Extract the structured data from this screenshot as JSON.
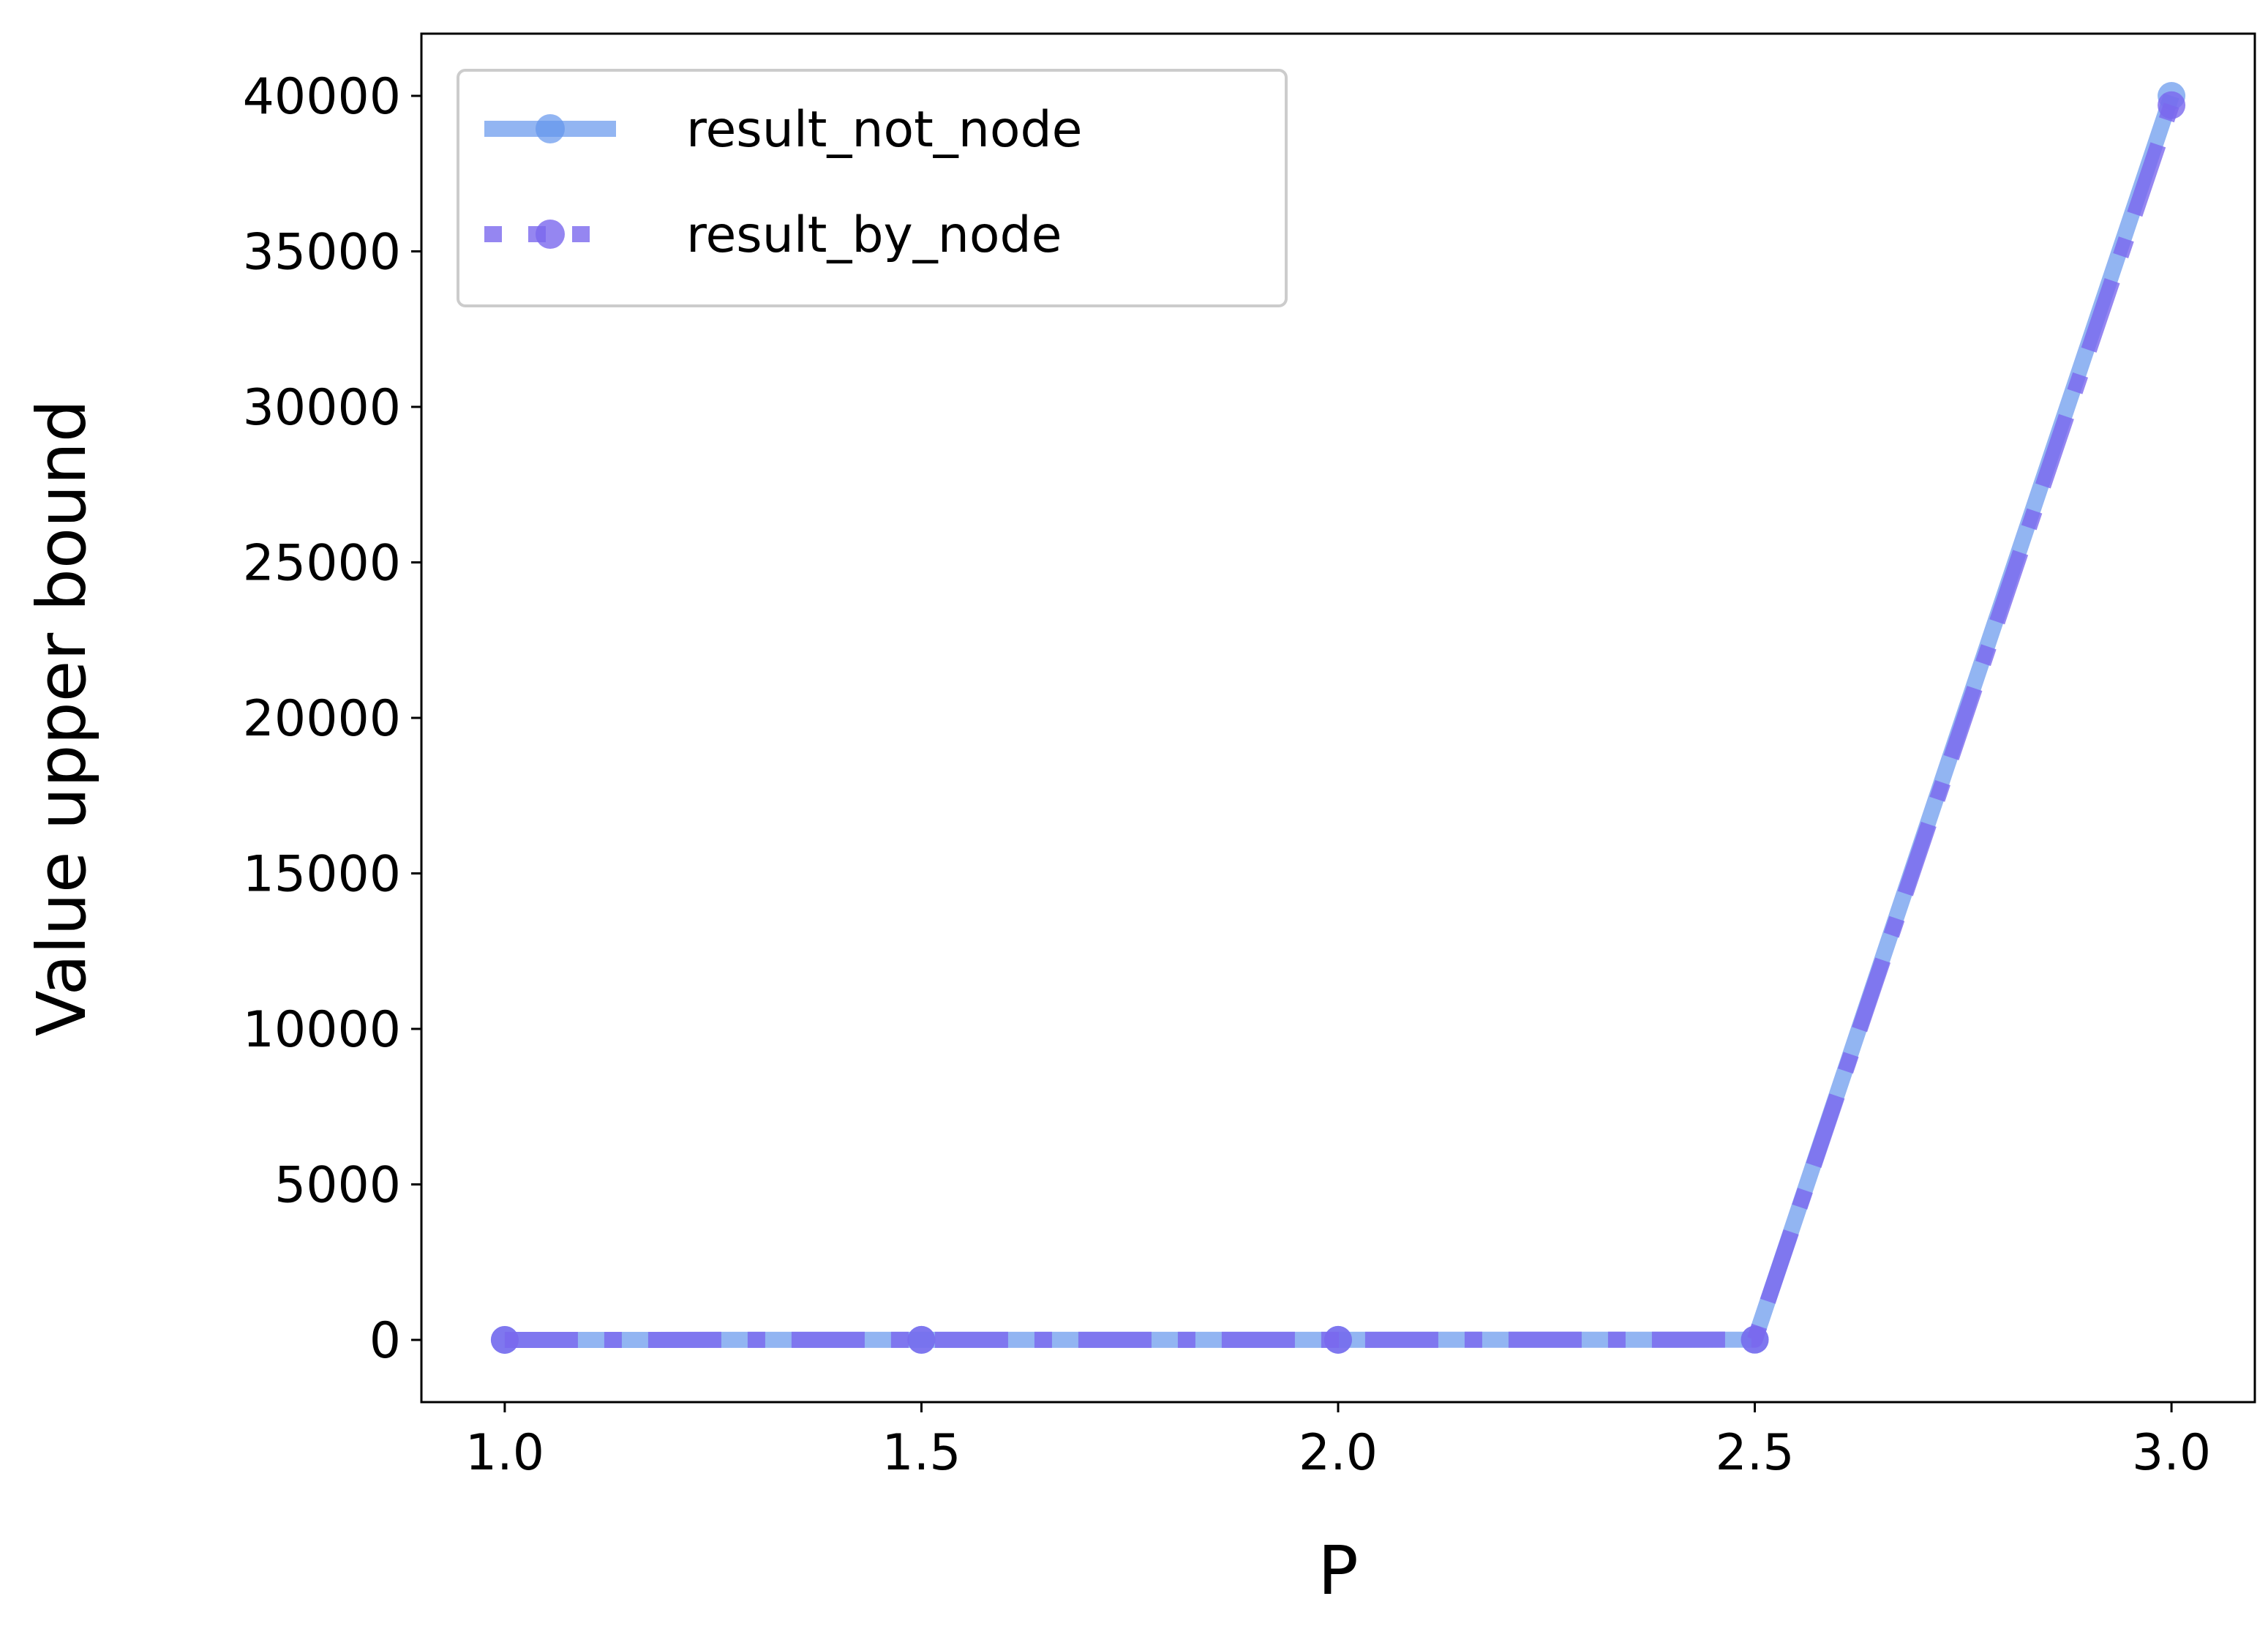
{
  "chart_data": {
    "type": "line",
    "title": "",
    "xlabel": "P",
    "ylabel": "Value upper bound",
    "x": [
      1.0,
      1.5,
      2.0,
      2.5,
      3.0
    ],
    "xlim": [
      0.9,
      3.1
    ],
    "ylim": [
      -2000,
      42000
    ],
    "xticks": [
      1.0,
      1.5,
      2.0,
      2.5,
      3.0
    ],
    "xtick_labels": [
      "1.0",
      "1.5",
      "2.0",
      "2.5",
      "3.0"
    ],
    "yticks": [
      0,
      5000,
      10000,
      15000,
      20000,
      25000,
      30000,
      35000,
      40000
    ],
    "ytick_labels": [
      "0",
      "5000",
      "10000",
      "15000",
      "20000",
      "25000",
      "30000",
      "35000",
      "40000"
    ],
    "grid": false,
    "legend_position": "top-left",
    "series": [
      {
        "name": "result_not_node",
        "values": [
          1,
          2,
          4,
          8,
          40000
        ],
        "color": "#6495ED",
        "line_style": "solid",
        "marker": "circle"
      },
      {
        "name": "result_by_node",
        "values": [
          1,
          2,
          3,
          8,
          39700
        ],
        "color": "#7B68EE",
        "line_style": "dash-dot",
        "marker": "circle"
      }
    ]
  }
}
